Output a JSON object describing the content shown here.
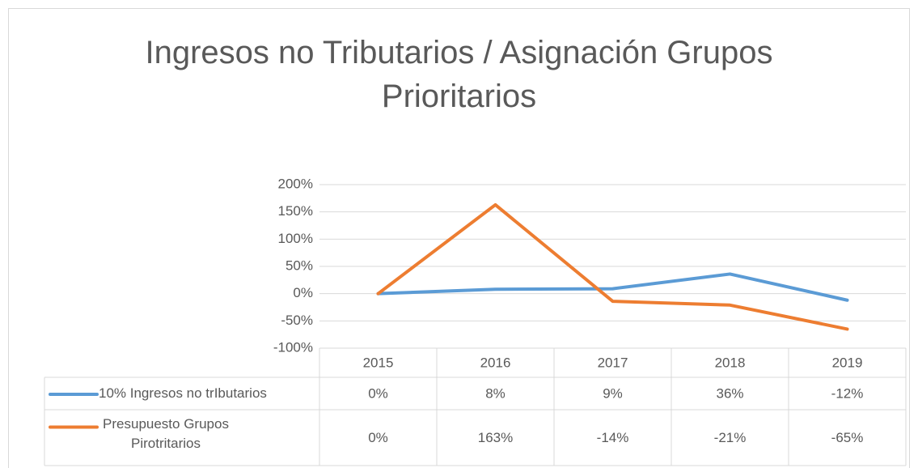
{
  "chart_data": {
    "type": "line",
    "title": "Ingresos no Tributarios / Asignación Grupos Prioritarios",
    "categories": [
      "2015",
      "2016",
      "2017",
      "2018",
      "2019"
    ],
    "series": [
      {
        "name": "10% Ingresos no trIbutarios",
        "color": "#5b9bd5",
        "values": [
          0,
          8,
          9,
          36,
          -12
        ],
        "value_labels": [
          "0%",
          "8%",
          "9%",
          "36%",
          "-12%"
        ]
      },
      {
        "name": "Presupuesto Grupos Pirotritarios",
        "color": "#ed7d31",
        "values": [
          0,
          163,
          -14,
          -21,
          -65
        ],
        "value_labels": [
          "0%",
          "163%",
          "-14%",
          "-21%",
          "-65%"
        ]
      }
    ],
    "ylim": [
      -100,
      200
    ],
    "yticks": [
      {
        "value": -100,
        "label": "-100%"
      },
      {
        "value": -50,
        "label": "-50%"
      },
      {
        "value": 0,
        "label": "0%"
      },
      {
        "value": 50,
        "label": "50%"
      },
      {
        "value": 100,
        "label": "100%"
      },
      {
        "value": 150,
        "label": "150%"
      },
      {
        "value": 200,
        "label": "200%"
      }
    ],
    "grid": true,
    "data_table": true
  }
}
